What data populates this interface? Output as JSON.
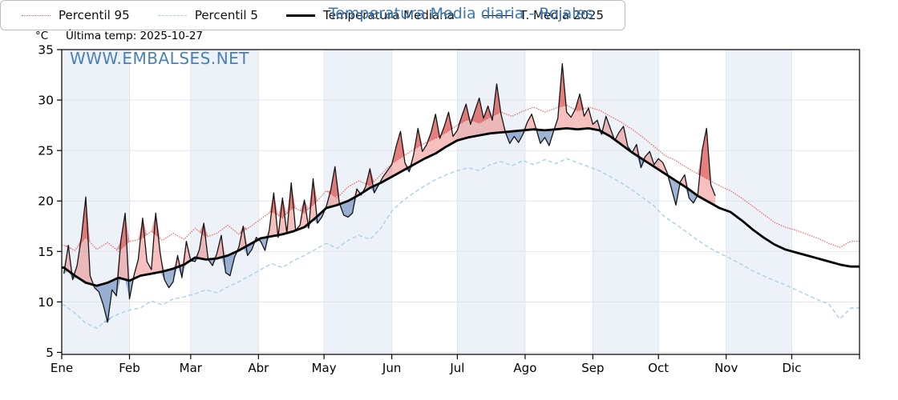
{
  "header": {
    "unit_label": "°C",
    "last_temp_label": "Última temp: 2025-10-27",
    "watermark": "WWW.EMBALSES.NET"
  },
  "colors": {
    "title": "#3878b4",
    "watermark": "#4a80ba",
    "band": "#edf2f9",
    "grid": "#dde3ec",
    "frame": "#000000",
    "tick_text": "#000000",
    "p95_line": "#ec5f5f",
    "p5_line": "#a6d1e8",
    "median_line": "#000000",
    "t2025_line": "#141414",
    "fill_above": "rgba(232,90,85,0.38)",
    "fill_above_p95": "rgba(203,38,38,0.42)",
    "fill_below": "rgba(78,120,178,0.55)",
    "fill_below_p5": "rgba(38,78,148,0.48)"
  },
  "legend": {
    "items": [
      {
        "label": "Percentil 95",
        "swatch": "p95"
      },
      {
        "label": "Percentil 5",
        "swatch": "p5"
      },
      {
        "label": "Temperatura Mediana",
        "swatch": "median"
      },
      {
        "label": "T. Media 2025",
        "swatch": "t2025"
      }
    ]
  },
  "chart_data": {
    "type": "line",
    "title": "Temperatura Media diaria - Rojales",
    "ylabel": "°C",
    "ylim": [
      4.8,
      35
    ],
    "yticks": [
      5,
      10,
      15,
      20,
      25,
      30,
      35
    ],
    "grid": true,
    "legend_position": "bottom",
    "x_axis": {
      "month_labels": [
        "Ene",
        "Feb",
        "Mar",
        "Abr",
        "May",
        "Jun",
        "Jul",
        "Ago",
        "Sep",
        "Oct",
        "Nov",
        "Dic"
      ],
      "month_start_days": [
        0,
        31,
        59,
        90,
        120,
        151,
        181,
        212,
        243,
        273,
        304,
        334
      ],
      "total_days": 365
    },
    "series": [
      {
        "name": "Percentil 95",
        "role": "p95",
        "style": "dotted",
        "width": 1.2,
        "start_day": 1,
        "day_step": 5,
        "values": [
          15.6,
          15.1,
          16.4,
          15.2,
          15.9,
          15.0,
          16.0,
          16.2,
          17.0,
          16.1,
          16.8,
          16.2,
          17.3,
          16.4,
          16.8,
          17.6,
          16.7,
          17.4,
          18.2,
          19.0,
          18.3,
          19.4,
          18.8,
          19.8,
          21.0,
          20.3,
          21.4,
          22.0,
          21.5,
          22.6,
          23.7,
          24.4,
          25.1,
          25.7,
          26.2,
          26.8,
          27.5,
          28.1,
          27.7,
          28.3,
          28.8,
          28.4,
          28.9,
          29.3,
          28.8,
          29.2,
          29.5,
          28.9,
          29.3,
          29.0,
          28.4,
          27.8,
          27.1,
          26.3,
          25.4,
          24.5,
          24.0,
          23.3,
          22.7,
          22.1,
          21.5,
          21.0,
          20.3,
          19.5,
          18.7,
          17.9,
          17.4,
          17.1,
          16.7,
          16.3,
          15.8,
          15.4,
          16.0
        ]
      },
      {
        "name": "Percentil 5",
        "role": "p5",
        "style": "dashed",
        "width": 1.4,
        "start_day": 1,
        "day_step": 5,
        "values": [
          9.7,
          8.9,
          7.9,
          7.4,
          8.3,
          8.8,
          9.2,
          9.4,
          10.1,
          9.7,
          10.3,
          10.5,
          10.8,
          11.2,
          10.9,
          11.5,
          12.0,
          12.6,
          13.2,
          13.8,
          13.4,
          14.1,
          14.6,
          15.2,
          15.8,
          15.3,
          16.1,
          16.6,
          16.2,
          17.3,
          19.0,
          20.0,
          20.8,
          21.5,
          22.1,
          22.6,
          23.0,
          23.3,
          23.0,
          23.6,
          23.9,
          23.5,
          24.0,
          23.6,
          24.1,
          23.7,
          24.2,
          23.8,
          23.4,
          23.0,
          22.4,
          21.8,
          21.1,
          20.3,
          19.5,
          18.4,
          17.7,
          16.9,
          16.1,
          15.4,
          14.8,
          14.3,
          13.7,
          13.1,
          12.6,
          12.1,
          11.7,
          11.2,
          10.7,
          10.2,
          9.8,
          8.3,
          9.4
        ]
      },
      {
        "name": "Temperatura Mediana",
        "role": "median",
        "style": "solid",
        "width": 2.8,
        "start_day": 1,
        "day_step": 5,
        "values": [
          13.4,
          12.6,
          11.9,
          11.6,
          11.9,
          12.4,
          12.1,
          12.6,
          12.8,
          13.0,
          13.3,
          13.7,
          14.4,
          14.2,
          14.3,
          14.6,
          15.1,
          15.7,
          16.3,
          16.5,
          16.7,
          17.0,
          17.4,
          18.3,
          19.3,
          19.6,
          20.0,
          20.6,
          21.3,
          21.8,
          22.4,
          23.0,
          23.6,
          24.2,
          24.7,
          25.4,
          26.0,
          26.3,
          26.5,
          26.7,
          26.8,
          26.9,
          27.0,
          27.1,
          27.0,
          27.1,
          27.2,
          27.1,
          27.2,
          27.0,
          26.4,
          25.6,
          24.8,
          24.1,
          23.4,
          22.7,
          22.0,
          21.3,
          20.5,
          19.9,
          19.3,
          18.9,
          18.1,
          17.2,
          16.4,
          15.7,
          15.2,
          14.9,
          14.6,
          14.3,
          14.0,
          13.7,
          13.5
        ]
      },
      {
        "name": "T. Media 2025",
        "role": "t2025",
        "style": "solid",
        "width": 1.3,
        "start_day": 1,
        "day_step": 2,
        "ends_at_data": true,
        "values": [
          12.8,
          15.6,
          12.2,
          13.6,
          16.4,
          20.4,
          12.6,
          11.4,
          11.0,
          9.7,
          8.0,
          11.2,
          10.6,
          16.0,
          18.8,
          10.3,
          12.6,
          14.2,
          18.3,
          14.0,
          13.2,
          18.8,
          14.9,
          12.2,
          11.4,
          12.0,
          14.6,
          12.4,
          16.0,
          14.1,
          14.0,
          15.2,
          17.8,
          14.2,
          13.6,
          14.8,
          16.6,
          12.9,
          12.6,
          14.4,
          15.4,
          17.5,
          14.6,
          15.2,
          16.4,
          16.0,
          15.1,
          17.2,
          20.8,
          16.4,
          20.3,
          16.8,
          21.8,
          17.1,
          17.6,
          20.1,
          17.3,
          22.2,
          17.8,
          18.4,
          19.4,
          21.0,
          23.4,
          19.8,
          18.6,
          18.4,
          18.8,
          21.2,
          20.6,
          21.4,
          23.2,
          20.8,
          21.6,
          22.4,
          23.0,
          23.6,
          25.4,
          26.9,
          23.8,
          22.9,
          24.6,
          27.2,
          24.9,
          25.6,
          26.8,
          28.6,
          26.2,
          27.4,
          28.8,
          26.4,
          27.0,
          28.4,
          29.6,
          27.6,
          28.9,
          30.2,
          28.2,
          29.4,
          28.0,
          31.6,
          28.6,
          26.8,
          25.7,
          26.4,
          25.8,
          26.6,
          27.8,
          28.6,
          27.2,
          25.7,
          26.3,
          25.5,
          26.9,
          28.2,
          33.6,
          28.8,
          28.3,
          29.1,
          30.6,
          28.4,
          29.2,
          27.6,
          28.0,
          26.6,
          28.4,
          27.2,
          26.0,
          26.8,
          27.4,
          25.4,
          24.8,
          25.6,
          23.3,
          24.4,
          24.9,
          23.6,
          24.2,
          23.8,
          22.8,
          21.2,
          19.6,
          21.9,
          22.6,
          20.3,
          19.8,
          20.6,
          25.0,
          27.2,
          21.6,
          20.5
        ]
      }
    ]
  }
}
